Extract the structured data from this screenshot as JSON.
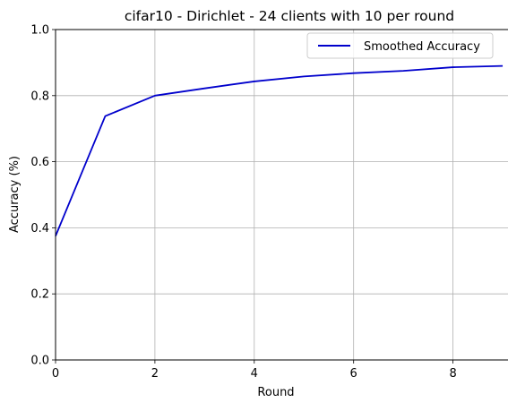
{
  "chart_data": {
    "type": "line",
    "title": "cifar10 - Dirichlet - 24 clients with 10 per round",
    "xlabel": "Round",
    "ylabel": "Accuracy (%)",
    "xlim": [
      0,
      9.45
    ],
    "ylim": [
      0,
      1.0
    ],
    "xticks": [
      0,
      2,
      4,
      6,
      8
    ],
    "xtick_labels": [
      "0",
      "2",
      "4",
      "6",
      "8"
    ],
    "yticks": [
      0,
      0.2,
      0.4,
      0.6,
      0.8,
      1.0
    ],
    "ytick_labels": [
      "0.0",
      "0.2",
      "0.4",
      "0.6",
      "0.8",
      "1.0"
    ],
    "grid": true,
    "legend_position": "top-right",
    "series": [
      {
        "name": "Smoothed Accuracy",
        "color": "#0000cc",
        "x": [
          0,
          1,
          2,
          3,
          4,
          5,
          6,
          7,
          8,
          9
        ],
        "y": [
          0.375,
          0.738,
          0.8,
          0.822,
          0.843,
          0.858,
          0.868,
          0.875,
          0.886,
          0.89
        ]
      }
    ]
  }
}
